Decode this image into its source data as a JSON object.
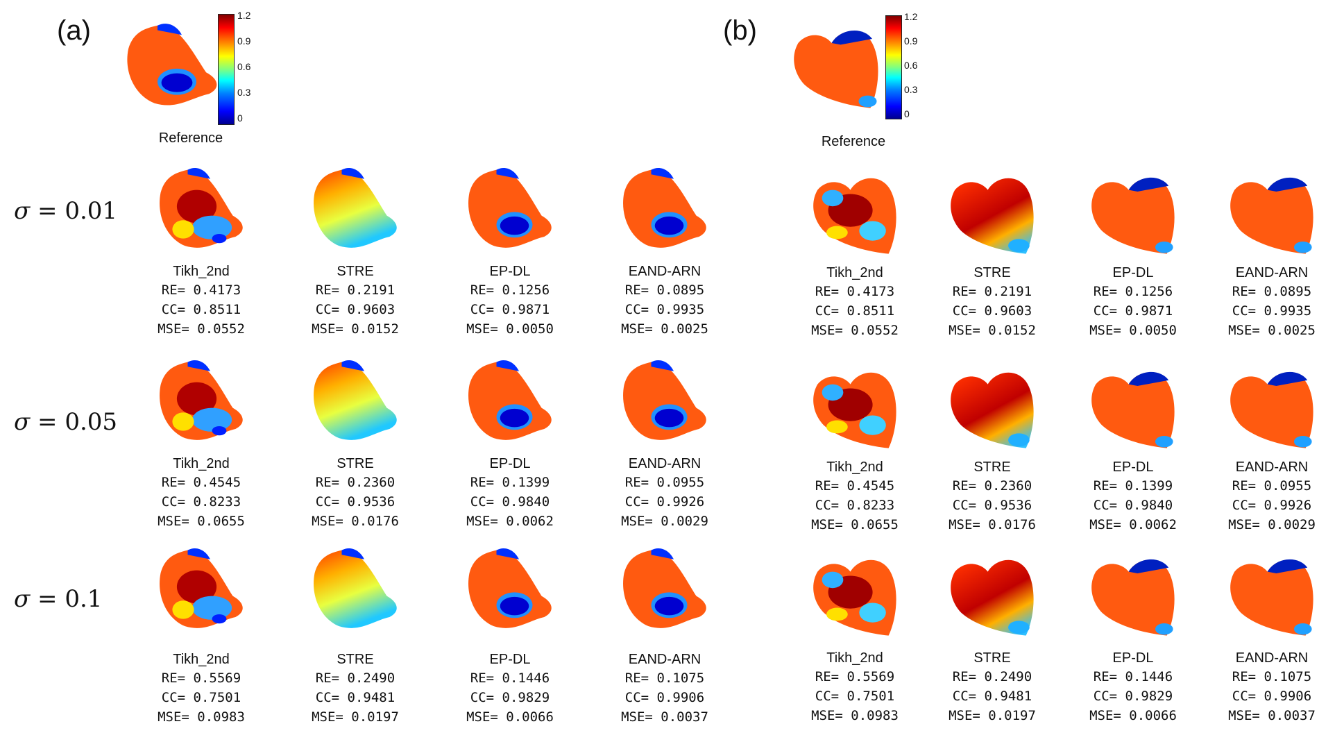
{
  "panels": [
    {
      "id": "a",
      "label": "(a)"
    },
    {
      "id": "b",
      "label": "(b)"
    }
  ],
  "reference_label": "Reference",
  "colorbar_ticks": [
    "1.2",
    "0.9",
    "0.6",
    "0.3",
    "0"
  ],
  "sigma_labels": [
    {
      "symbol": "σ",
      "value": "= 0.01"
    },
    {
      "symbol": "σ",
      "value": "= 0.05"
    },
    {
      "symbol": "σ",
      "value": "= 0.1"
    }
  ],
  "methods": [
    "Tikh_2nd",
    "STRE",
    "EP-DL",
    "EAND-ARN"
  ],
  "results": [
    [
      {
        "re": "RE= 0.4173",
        "cc": "CC= 0.8511",
        "mse": "MSE= 0.0552"
      },
      {
        "re": "RE= 0.2191",
        "cc": "CC= 0.9603",
        "mse": "MSE= 0.0152"
      },
      {
        "re": "RE= 0.1256",
        "cc": "CC= 0.9871",
        "mse": "MSE= 0.0050"
      },
      {
        "re": "RE= 0.0895",
        "cc": "CC= 0.9935",
        "mse": "MSE= 0.0025"
      }
    ],
    [
      {
        "re": "RE= 0.4545",
        "cc": "CC= 0.8233",
        "mse": "MSE= 0.0655"
      },
      {
        "re": "RE= 0.2360",
        "cc": "CC= 0.9536",
        "mse": "MSE= 0.0176"
      },
      {
        "re": "RE= 0.1399",
        "cc": "CC= 0.9840",
        "mse": "MSE= 0.0062"
      },
      {
        "re": "RE= 0.0955",
        "cc": "CC= 0.9926",
        "mse": "MSE= 0.0029"
      }
    ],
    [
      {
        "re": "RE= 0.5569",
        "cc": "CC= 0.7501",
        "mse": "MSE= 0.0983"
      },
      {
        "re": "RE= 0.2490",
        "cc": "CC= 0.9481",
        "mse": "MSE= 0.0197"
      },
      {
        "re": "RE= 0.1446",
        "cc": "CC= 0.9829",
        "mse": "MSE= 0.0066"
      },
      {
        "re": "RE= 0.1075",
        "cc": "CC= 0.9906",
        "mse": "MSE= 0.0037"
      }
    ]
  ]
}
